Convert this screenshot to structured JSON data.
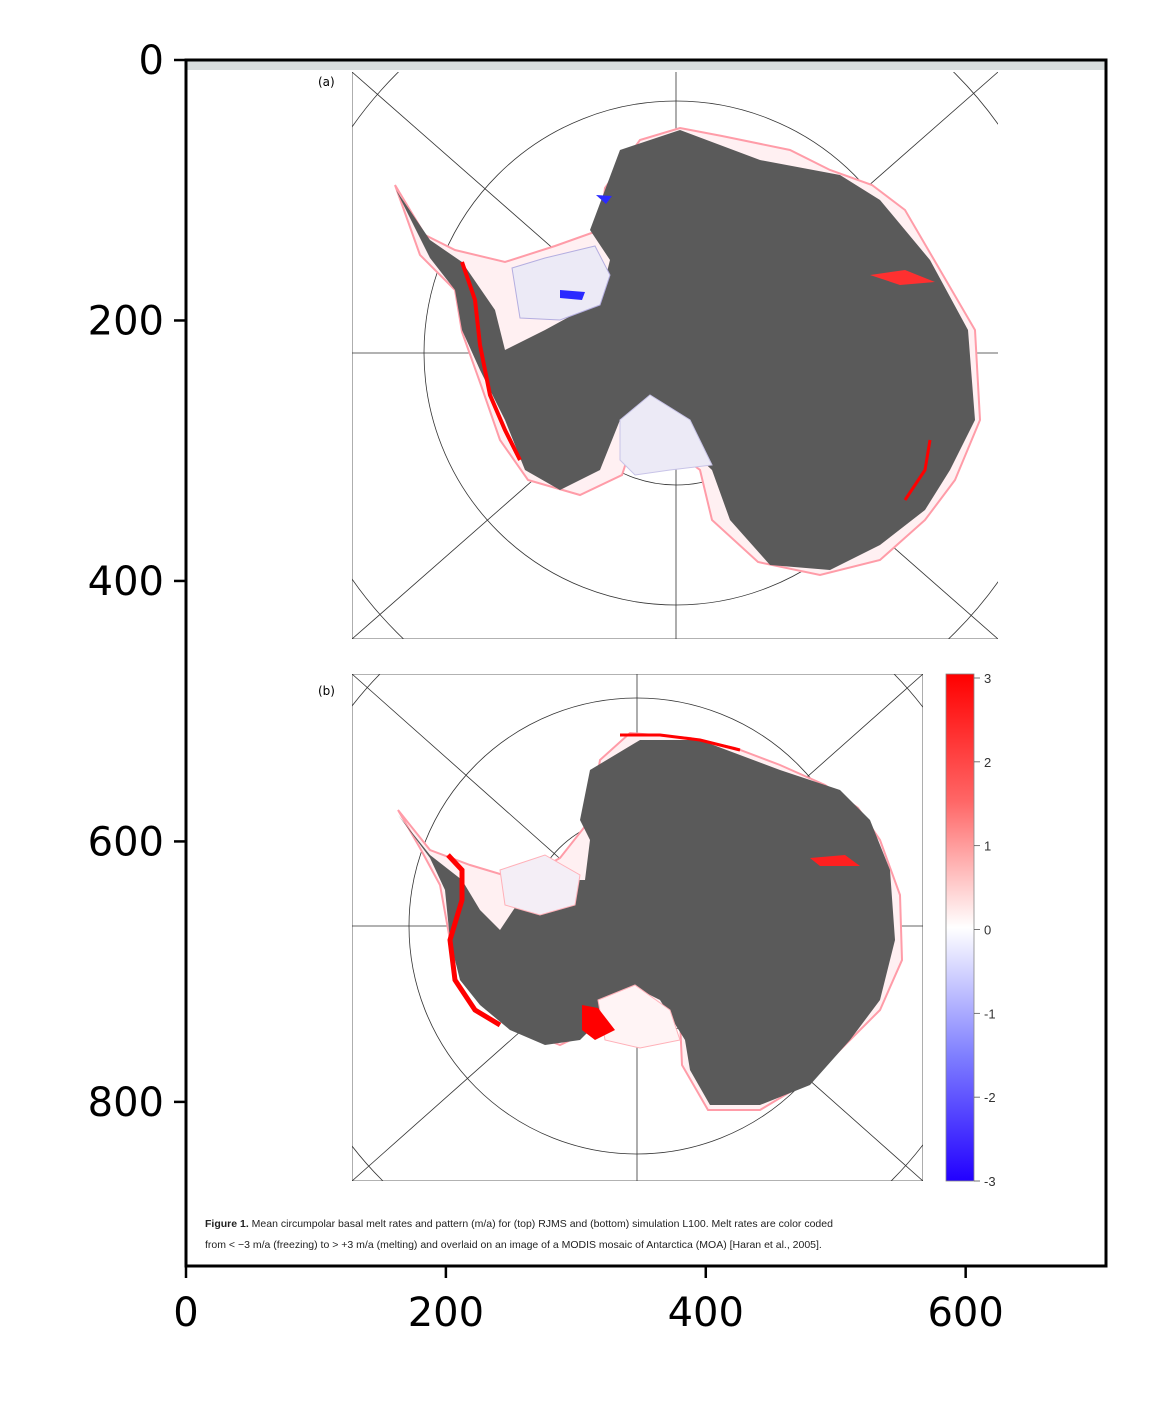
{
  "figure": {
    "panel_a_label": "(a)",
    "panel_b_label": "(b)",
    "caption_bold": "Figure 1.",
    "caption_line1": " Mean circumpolar basal melt rates and pattern (m/a) for (top) RJMS and (bottom) simulation L100. Melt rates are color coded",
    "caption_line2": "from < −3 m/a (freezing) to > +3 m/a (melting) and overlaid on an image of a MODIS mosaic of Antarctica (MOA) [Haran et al., 2005].",
    "colorbar_ticks": [
      "3",
      "2",
      "1",
      "0",
      "-1",
      "-2",
      "-3"
    ],
    "colors": {
      "land": "#5a5a5a",
      "melt": "#ff0000",
      "freeze": "#2200ff",
      "grid": "#333333",
      "frame": "#000000"
    }
  },
  "axes": {
    "xticks": [
      "0",
      "200",
      "400",
      "600"
    ],
    "yticks": [
      "0",
      "200",
      "400",
      "600",
      "800"
    ],
    "x_values": [
      0,
      200,
      400,
      600
    ],
    "y_values": [
      0,
      200,
      400,
      600,
      800
    ],
    "xlim": [
      0,
      708
    ],
    "ylim": [
      0,
      926
    ]
  }
}
